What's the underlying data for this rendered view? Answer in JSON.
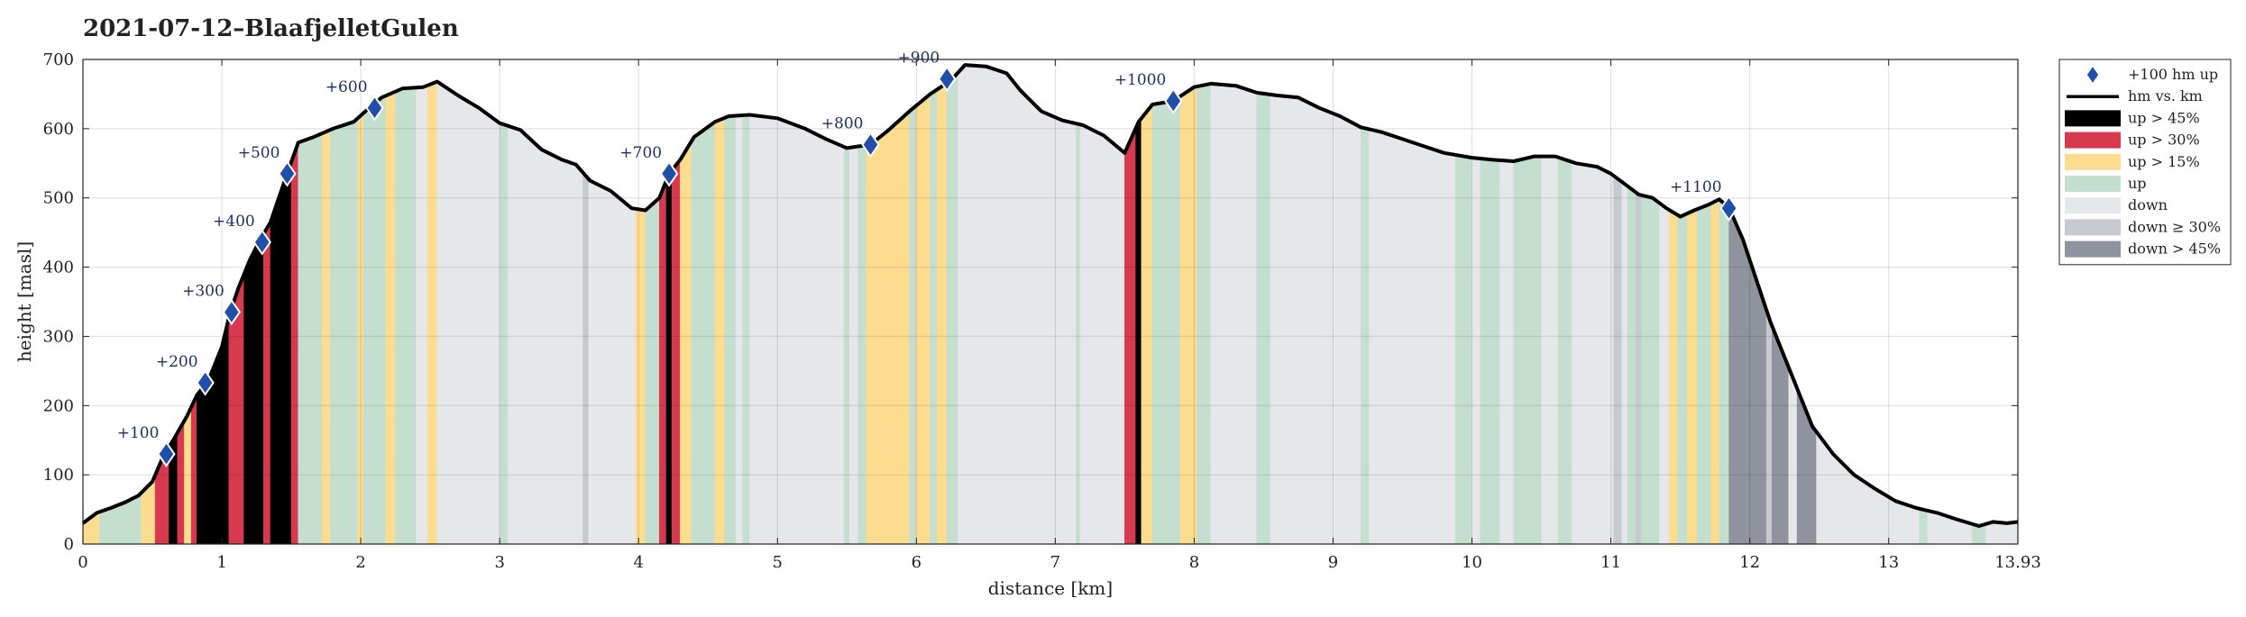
{
  "chart_data": {
    "type": "area",
    "title": "2021-07-12–BlaafjelletGulen",
    "xlabel": "distance [km]",
    "ylabel": "height [masl]",
    "xlim": [
      0,
      13.93
    ],
    "ylim": [
      0,
      700
    ],
    "x_ticks": [
      0,
      1,
      2,
      3,
      4,
      5,
      6,
      7,
      8,
      9,
      10,
      11,
      12,
      13,
      13.93
    ],
    "x_tick_labels": [
      "0",
      "1",
      "2",
      "3",
      "4",
      "5",
      "6",
      "7",
      "8",
      "9",
      "10",
      "11",
      "12",
      "13",
      "13.93"
    ],
    "y_ticks": [
      0,
      100,
      200,
      300,
      400,
      500,
      600,
      700
    ],
    "y_tick_labels": [
      "0",
      "100",
      "200",
      "300",
      "400",
      "500",
      "600",
      "700"
    ],
    "grid": true,
    "legend_placement": "outside-right",
    "legend": [
      {
        "label": "+100 hm up",
        "kind": "marker",
        "color": "#1f4fa8"
      },
      {
        "label": "hm vs. km",
        "kind": "line",
        "color": "#000000"
      },
      {
        "label": "up > 45%",
        "kind": "patch",
        "color": "#000000"
      },
      {
        "label": "up > 30%",
        "kind": "patch",
        "color": "#d7394f"
      },
      {
        "label": "up > 15%",
        "kind": "patch",
        "color": "#fcdc8f"
      },
      {
        "label": "up",
        "kind": "patch",
        "color": "#c4dfcf"
      },
      {
        "label": "down",
        "kind": "patch",
        "color": "#e6e7ea"
      },
      {
        "label": "down ≥ 30%",
        "kind": "patch",
        "color": "#c7c9d0"
      },
      {
        "label": "down > 45%",
        "kind": "patch",
        "color": "#8e939e"
      }
    ],
    "colors": {
      "steep45": "#000000",
      "steep30": "#d7394f",
      "steep15": "#fcdc8f",
      "up": "#c4dfcf",
      "down": "#e6e7ea",
      "down30": "#c7c9d0",
      "down45": "#8e939e",
      "marker": "#1f4fa8"
    },
    "profile": [
      [
        0,
        30
      ],
      [
        0.1,
        45
      ],
      [
        0.2,
        52
      ],
      [
        0.3,
        60
      ],
      [
        0.4,
        70
      ],
      [
        0.5,
        90
      ],
      [
        0.58,
        128
      ],
      [
        0.65,
        150
      ],
      [
        0.75,
        185
      ],
      [
        0.82,
        215
      ],
      [
        0.9,
        235
      ],
      [
        1.0,
        285
      ],
      [
        1.06,
        335
      ],
      [
        1.12,
        370
      ],
      [
        1.2,
        410
      ],
      [
        1.27,
        438
      ],
      [
        1.35,
        465
      ],
      [
        1.41,
        500
      ],
      [
        1.47,
        535
      ],
      [
        1.55,
        580
      ],
      [
        1.65,
        587
      ],
      [
        1.8,
        600
      ],
      [
        1.95,
        610
      ],
      [
        2.05,
        628
      ],
      [
        2.15,
        645
      ],
      [
        2.3,
        658
      ],
      [
        2.45,
        660
      ],
      [
        2.55,
        668
      ],
      [
        2.7,
        648
      ],
      [
        2.85,
        630
      ],
      [
        3.0,
        608
      ],
      [
        3.15,
        598
      ],
      [
        3.3,
        570
      ],
      [
        3.45,
        555
      ],
      [
        3.55,
        548
      ],
      [
        3.65,
        525
      ],
      [
        3.8,
        510
      ],
      [
        3.95,
        485
      ],
      [
        4.05,
        482
      ],
      [
        4.15,
        500
      ],
      [
        4.22,
        535
      ],
      [
        4.3,
        555
      ],
      [
        4.4,
        588
      ],
      [
        4.55,
        610
      ],
      [
        4.65,
        618
      ],
      [
        4.8,
        620
      ],
      [
        5.0,
        615
      ],
      [
        5.2,
        600
      ],
      [
        5.35,
        585
      ],
      [
        5.5,
        572
      ],
      [
        5.67,
        577
      ],
      [
        5.8,
        598
      ],
      [
        5.95,
        625
      ],
      [
        6.1,
        650
      ],
      [
        6.25,
        670
      ],
      [
        6.35,
        692
      ],
      [
        6.5,
        690
      ],
      [
        6.65,
        680
      ],
      [
        6.75,
        655
      ],
      [
        6.9,
        625
      ],
      [
        7.05,
        612
      ],
      [
        7.2,
        605
      ],
      [
        7.35,
        590
      ],
      [
        7.5,
        565
      ],
      [
        7.6,
        610
      ],
      [
        7.7,
        635
      ],
      [
        7.85,
        640
      ],
      [
        8.0,
        660
      ],
      [
        8.12,
        665
      ],
      [
        8.3,
        662
      ],
      [
        8.45,
        652
      ],
      [
        8.6,
        648
      ],
      [
        8.75,
        645
      ],
      [
        8.9,
        630
      ],
      [
        9.05,
        618
      ],
      [
        9.2,
        602
      ],
      [
        9.35,
        595
      ],
      [
        9.5,
        585
      ],
      [
        9.65,
        575
      ],
      [
        9.8,
        565
      ],
      [
        10.0,
        558
      ],
      [
        10.15,
        555
      ],
      [
        10.3,
        553
      ],
      [
        10.45,
        560
      ],
      [
        10.6,
        560
      ],
      [
        10.75,
        550
      ],
      [
        10.9,
        545
      ],
      [
        11.0,
        535
      ],
      [
        11.1,
        520
      ],
      [
        11.2,
        505
      ],
      [
        11.3,
        500
      ],
      [
        11.4,
        485
      ],
      [
        11.5,
        473
      ],
      [
        11.6,
        482
      ],
      [
        11.7,
        490
      ],
      [
        11.78,
        498
      ],
      [
        11.85,
        486
      ],
      [
        11.95,
        440
      ],
      [
        12.05,
        380
      ],
      [
        12.15,
        320
      ],
      [
        12.25,
        270
      ],
      [
        12.35,
        220
      ],
      [
        12.45,
        170
      ],
      [
        12.6,
        130
      ],
      [
        12.75,
        100
      ],
      [
        12.9,
        80
      ],
      [
        13.05,
        62
      ],
      [
        13.2,
        52
      ],
      [
        13.35,
        45
      ],
      [
        13.5,
        35
      ],
      [
        13.65,
        26
      ],
      [
        13.75,
        32
      ],
      [
        13.85,
        30
      ],
      [
        13.93,
        32
      ]
    ],
    "segments": [
      [
        0.0,
        0.12,
        "steep15"
      ],
      [
        0.12,
        0.42,
        "up"
      ],
      [
        0.42,
        0.52,
        "steep15"
      ],
      [
        0.52,
        0.62,
        "steep30"
      ],
      [
        0.62,
        0.68,
        "steep45"
      ],
      [
        0.68,
        0.73,
        "steep30"
      ],
      [
        0.73,
        0.78,
        "steep15"
      ],
      [
        0.78,
        0.82,
        "steep30"
      ],
      [
        0.82,
        1.05,
        "steep45"
      ],
      [
        1.05,
        1.16,
        "steep30"
      ],
      [
        1.16,
        1.3,
        "steep45"
      ],
      [
        1.3,
        1.35,
        "steep30"
      ],
      [
        1.35,
        1.5,
        "steep45"
      ],
      [
        1.5,
        1.55,
        "steep30"
      ],
      [
        1.55,
        1.72,
        "up"
      ],
      [
        1.72,
        1.78,
        "steep15"
      ],
      [
        1.78,
        1.98,
        "up"
      ],
      [
        1.98,
        2.02,
        "steep15"
      ],
      [
        2.02,
        2.18,
        "up"
      ],
      [
        2.18,
        2.25,
        "steep15"
      ],
      [
        2.25,
        2.4,
        "up"
      ],
      [
        2.4,
        2.48,
        "down"
      ],
      [
        2.48,
        2.55,
        "steep15"
      ],
      [
        2.55,
        3.0,
        "down"
      ],
      [
        3.0,
        3.06,
        "up"
      ],
      [
        3.06,
        3.6,
        "down"
      ],
      [
        3.6,
        3.64,
        "down30"
      ],
      [
        3.64,
        3.98,
        "down"
      ],
      [
        3.98,
        4.05,
        "steep15"
      ],
      [
        4.05,
        4.15,
        "up"
      ],
      [
        4.15,
        4.2,
        "steep30"
      ],
      [
        4.2,
        4.24,
        "steep45"
      ],
      [
        4.24,
        4.3,
        "steep30"
      ],
      [
        4.3,
        4.38,
        "steep15"
      ],
      [
        4.38,
        4.55,
        "up"
      ],
      [
        4.55,
        4.62,
        "steep15"
      ],
      [
        4.62,
        4.7,
        "up"
      ],
      [
        4.7,
        4.75,
        "down"
      ],
      [
        4.75,
        4.8,
        "up"
      ],
      [
        4.8,
        5.48,
        "down"
      ],
      [
        5.48,
        5.52,
        "up"
      ],
      [
        5.52,
        5.58,
        "down"
      ],
      [
        5.58,
        5.64,
        "up"
      ],
      [
        5.64,
        5.95,
        "steep15"
      ],
      [
        5.95,
        6.0,
        "up"
      ],
      [
        6.0,
        6.1,
        "steep15"
      ],
      [
        6.1,
        6.15,
        "up"
      ],
      [
        6.15,
        6.22,
        "steep15"
      ],
      [
        6.22,
        6.3,
        "up"
      ],
      [
        6.3,
        7.15,
        "down"
      ],
      [
        7.15,
        7.18,
        "up"
      ],
      [
        7.18,
        7.5,
        "down"
      ],
      [
        7.5,
        7.58,
        "steep30"
      ],
      [
        7.58,
        7.62,
        "steep45"
      ],
      [
        7.62,
        7.7,
        "steep15"
      ],
      [
        7.7,
        7.9,
        "up"
      ],
      [
        7.9,
        8.02,
        "steep15"
      ],
      [
        8.02,
        8.12,
        "up"
      ],
      [
        8.12,
        8.45,
        "down"
      ],
      [
        8.45,
        8.55,
        "up"
      ],
      [
        8.55,
        9.2,
        "down"
      ],
      [
        9.2,
        9.26,
        "up"
      ],
      [
        9.26,
        9.88,
        "down"
      ],
      [
        9.88,
        10.0,
        "up"
      ],
      [
        10.0,
        10.06,
        "down"
      ],
      [
        10.06,
        10.2,
        "up"
      ],
      [
        10.2,
        10.3,
        "down"
      ],
      [
        10.3,
        10.5,
        "up"
      ],
      [
        10.5,
        10.62,
        "down"
      ],
      [
        10.62,
        10.72,
        "up"
      ],
      [
        10.72,
        11.02,
        "down"
      ],
      [
        11.02,
        11.08,
        "down30"
      ],
      [
        11.08,
        11.12,
        "down"
      ],
      [
        11.12,
        11.18,
        "up"
      ],
      [
        11.18,
        11.22,
        "down30"
      ],
      [
        11.22,
        11.35,
        "up"
      ],
      [
        11.35,
        11.42,
        "down"
      ],
      [
        11.42,
        11.48,
        "steep15"
      ],
      [
        11.48,
        11.55,
        "up"
      ],
      [
        11.55,
        11.62,
        "steep15"
      ],
      [
        11.62,
        11.72,
        "up"
      ],
      [
        11.72,
        11.78,
        "steep15"
      ],
      [
        11.78,
        11.85,
        "up"
      ],
      [
        11.85,
        12.12,
        "down45"
      ],
      [
        12.12,
        12.16,
        "down30"
      ],
      [
        12.16,
        12.28,
        "down45"
      ],
      [
        12.28,
        12.34,
        "down"
      ],
      [
        12.34,
        12.48,
        "down45"
      ],
      [
        12.48,
        13.22,
        "down"
      ],
      [
        13.22,
        13.28,
        "up"
      ],
      [
        13.28,
        13.6,
        "down"
      ],
      [
        13.6,
        13.7,
        "up"
      ],
      [
        13.7,
        13.93,
        "down"
      ]
    ],
    "markers": [
      {
        "x": 0.6,
        "y": 130,
        "label": "+100"
      },
      {
        "x": 0.88,
        "y": 233,
        "label": "+200"
      },
      {
        "x": 1.07,
        "y": 335,
        "label": "+300"
      },
      {
        "x": 1.29,
        "y": 436,
        "label": "+400"
      },
      {
        "x": 1.47,
        "y": 535,
        "label": "+500"
      },
      {
        "x": 2.1,
        "y": 630,
        "label": "+600"
      },
      {
        "x": 4.22,
        "y": 535,
        "label": "+700"
      },
      {
        "x": 5.67,
        "y": 577,
        "label": "+800"
      },
      {
        "x": 6.22,
        "y": 672,
        "label": "+900"
      },
      {
        "x": 7.85,
        "y": 640,
        "label": "+1000"
      },
      {
        "x": 11.85,
        "y": 485,
        "label": "+1100"
      }
    ]
  }
}
